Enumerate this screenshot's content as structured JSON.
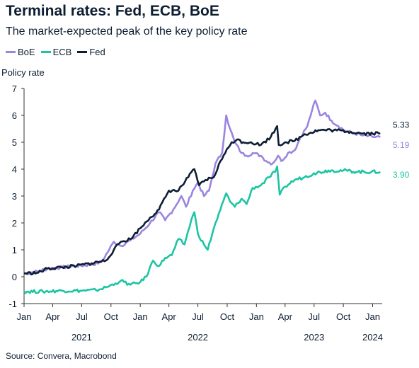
{
  "title": "Terminal rates: Fed, ECB, BoE",
  "subtitle": "The market-expected peak of the key policy rate",
  "source": "Source: Convera, Macrobond",
  "chart_data": {
    "type": "line",
    "title": "Terminal rates: Fed, ECB, BoE",
    "subtitle": "The market-expected peak of the key policy rate",
    "ylabel": "Policy rate",
    "xlabel": "",
    "ylim": [
      -1,
      7
    ],
    "xlim": [
      "2021-01-01",
      "2024-01-31"
    ],
    "yticks": [
      -1,
      0,
      1,
      2,
      3,
      4,
      5,
      6,
      7
    ],
    "xticks": [
      {
        "date": "2021-01-01",
        "label": "Jan"
      },
      {
        "date": "2021-04-01",
        "label": "Apr"
      },
      {
        "date": "2021-07-01",
        "label": "Jul"
      },
      {
        "date": "2021-10-01",
        "label": "Oct"
      },
      {
        "date": "2022-01-01",
        "label": "Jan"
      },
      {
        "date": "2022-04-01",
        "label": "Apr"
      },
      {
        "date": "2022-07-01",
        "label": "Jul"
      },
      {
        "date": "2022-10-01",
        "label": "Oct"
      },
      {
        "date": "2023-01-01",
        "label": "Jan"
      },
      {
        "date": "2023-04-01",
        "label": "Apr"
      },
      {
        "date": "2023-07-01",
        "label": "Jul"
      },
      {
        "date": "2023-10-01",
        "label": "Oct"
      },
      {
        "date": "2024-01-01",
        "label": "Jan"
      }
    ],
    "year_labels": [
      {
        "date": "2021-07-01",
        "label": "2021"
      },
      {
        "date": "2022-07-01",
        "label": "2022"
      },
      {
        "date": "2023-07-01",
        "label": "2023"
      },
      {
        "date": "2024-01-01",
        "label": "2024"
      }
    ],
    "legend_position": "top-left",
    "grid": false,
    "series": [
      {
        "name": "BoE",
        "color": "#9b85e0",
        "end_label": "5.19",
        "points": [
          [
            "2021-01-01",
            0.12
          ],
          [
            "2021-02-15",
            0.2
          ],
          [
            "2021-03-15",
            0.3
          ],
          [
            "2021-05-01",
            0.35
          ],
          [
            "2021-06-15",
            0.4
          ],
          [
            "2021-08-01",
            0.45
          ],
          [
            "2021-09-01",
            0.55
          ],
          [
            "2021-09-20",
            0.9
          ],
          [
            "2021-10-10",
            1.3
          ],
          [
            "2021-11-01",
            1.15
          ],
          [
            "2021-12-01",
            1.35
          ],
          [
            "2022-01-01",
            1.6
          ],
          [
            "2022-02-01",
            2.0
          ],
          [
            "2022-03-01",
            2.4
          ],
          [
            "2022-03-20",
            2.1
          ],
          [
            "2022-04-15",
            2.5
          ],
          [
            "2022-05-10",
            3.0
          ],
          [
            "2022-05-25",
            2.6
          ],
          [
            "2022-06-15",
            3.2
          ],
          [
            "2022-07-01",
            3.5
          ],
          [
            "2022-07-20",
            3.0
          ],
          [
            "2022-08-05",
            3.2
          ],
          [
            "2022-08-25",
            4.2
          ],
          [
            "2022-09-15",
            4.6
          ],
          [
            "2022-09-28",
            6.0
          ],
          [
            "2022-10-10",
            5.5
          ],
          [
            "2022-10-25",
            5.0
          ],
          [
            "2022-11-15",
            4.6
          ],
          [
            "2022-12-01",
            4.5
          ],
          [
            "2022-12-20",
            4.6
          ],
          [
            "2023-01-15",
            4.5
          ],
          [
            "2023-02-01",
            4.3
          ],
          [
            "2023-02-20",
            4.2
          ],
          [
            "2023-03-10",
            4.5
          ],
          [
            "2023-03-20",
            4.3
          ],
          [
            "2023-04-10",
            4.6
          ],
          [
            "2023-05-01",
            4.7
          ],
          [
            "2023-05-20",
            5.2
          ],
          [
            "2023-06-10",
            5.6
          ],
          [
            "2023-06-25",
            6.2
          ],
          [
            "2023-07-05",
            6.55
          ],
          [
            "2023-07-20",
            6.0
          ],
          [
            "2023-08-05",
            6.1
          ],
          [
            "2023-08-25",
            5.8
          ],
          [
            "2023-09-15",
            5.6
          ],
          [
            "2023-10-10",
            5.4
          ],
          [
            "2023-11-01",
            5.35
          ],
          [
            "2023-12-01",
            5.25
          ],
          [
            "2024-01-01",
            5.2
          ],
          [
            "2024-01-25",
            5.19
          ]
        ]
      },
      {
        "name": "ECB",
        "color": "#1ec4a4",
        "end_label": "3.90",
        "points": [
          [
            "2021-01-01",
            -0.55
          ],
          [
            "2021-03-01",
            -0.55
          ],
          [
            "2021-05-01",
            -0.52
          ],
          [
            "2021-07-01",
            -0.52
          ],
          [
            "2021-08-15",
            -0.5
          ],
          [
            "2021-09-15",
            -0.4
          ],
          [
            "2021-10-15",
            -0.25
          ],
          [
            "2021-11-01",
            -0.15
          ],
          [
            "2021-12-01",
            -0.3
          ],
          [
            "2022-01-01",
            -0.2
          ],
          [
            "2022-01-20",
            0.0
          ],
          [
            "2022-02-10",
            0.6
          ],
          [
            "2022-03-01",
            0.4
          ],
          [
            "2022-03-20",
            0.7
          ],
          [
            "2022-04-10",
            0.8
          ],
          [
            "2022-05-01",
            1.4
          ],
          [
            "2022-05-20",
            1.2
          ],
          [
            "2022-06-10",
            2.1
          ],
          [
            "2022-06-20",
            2.4
          ],
          [
            "2022-07-01",
            1.6
          ],
          [
            "2022-07-20",
            1.2
          ],
          [
            "2022-08-01",
            1.0
          ],
          [
            "2022-08-20",
            1.8
          ],
          [
            "2022-09-10",
            2.5
          ],
          [
            "2022-09-28",
            3.1
          ],
          [
            "2022-10-10",
            2.8
          ],
          [
            "2022-10-25",
            2.6
          ],
          [
            "2022-11-15",
            2.9
          ],
          [
            "2022-12-01",
            2.7
          ],
          [
            "2022-12-20",
            3.3
          ],
          [
            "2023-01-15",
            3.4
          ],
          [
            "2023-02-10",
            3.7
          ],
          [
            "2023-03-01",
            3.9
          ],
          [
            "2023-03-07",
            4.1
          ],
          [
            "2023-03-15",
            3.05
          ],
          [
            "2023-04-01",
            3.35
          ],
          [
            "2023-05-01",
            3.6
          ],
          [
            "2023-06-01",
            3.7
          ],
          [
            "2023-07-01",
            3.85
          ],
          [
            "2023-08-15",
            3.95
          ],
          [
            "2023-10-01",
            3.95
          ],
          [
            "2023-11-15",
            3.9
          ],
          [
            "2024-01-25",
            3.9
          ]
        ]
      },
      {
        "name": "Fed",
        "color": "#0e1e32",
        "end_label": "5.33",
        "points": [
          [
            "2021-01-01",
            0.12
          ],
          [
            "2021-02-15",
            0.15
          ],
          [
            "2021-03-15",
            0.3
          ],
          [
            "2021-05-01",
            0.35
          ],
          [
            "2021-06-15",
            0.4
          ],
          [
            "2021-08-01",
            0.5
          ],
          [
            "2021-09-15",
            0.6
          ],
          [
            "2021-10-10",
            1.0
          ],
          [
            "2021-11-01",
            1.3
          ],
          [
            "2021-12-01",
            1.4
          ],
          [
            "2022-01-01",
            1.8
          ],
          [
            "2022-02-01",
            2.2
          ],
          [
            "2022-03-01",
            2.5
          ],
          [
            "2022-04-01",
            3.2
          ],
          [
            "2022-05-01",
            3.2
          ],
          [
            "2022-06-01",
            3.7
          ],
          [
            "2022-06-20",
            4.0
          ],
          [
            "2022-07-05",
            3.4
          ],
          [
            "2022-07-25",
            3.6
          ],
          [
            "2022-08-20",
            3.7
          ],
          [
            "2022-09-10",
            4.3
          ],
          [
            "2022-09-25",
            4.6
          ],
          [
            "2022-10-15",
            5.0
          ],
          [
            "2022-11-01",
            5.1
          ],
          [
            "2022-11-20",
            5.0
          ],
          [
            "2022-12-15",
            5.0
          ],
          [
            "2023-01-15",
            4.9
          ],
          [
            "2023-02-15",
            5.2
          ],
          [
            "2023-03-07",
            5.6
          ],
          [
            "2023-03-12",
            4.9
          ],
          [
            "2023-04-01",
            5.0
          ],
          [
            "2023-05-01",
            5.05
          ],
          [
            "2023-06-01",
            5.3
          ],
          [
            "2023-07-15",
            5.45
          ],
          [
            "2023-09-01",
            5.45
          ],
          [
            "2023-10-15",
            5.4
          ],
          [
            "2023-12-01",
            5.33
          ],
          [
            "2024-01-25",
            5.33
          ]
        ]
      }
    ]
  }
}
